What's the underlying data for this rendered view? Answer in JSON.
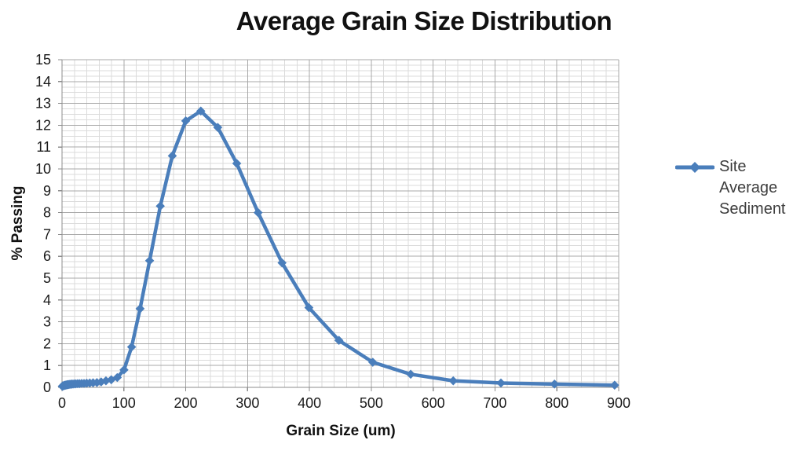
{
  "title": "Average Grain Size Distribution",
  "x_axis": {
    "title": "Grain Size (um)"
  },
  "y_axis": {
    "title": "% Passing"
  },
  "legend": {
    "series_label": "Site Average Sediment",
    "position": "right"
  },
  "colors": {
    "series": "#4A7EBB",
    "grid_major": "#A8A8A8",
    "grid_minor": "#DBDBDB",
    "axis": "#8C8C8C",
    "tick_text": "#1A1A1A",
    "title_text": "#111111",
    "legend_text": "#3D3D3D",
    "background": "#FFFFFF"
  },
  "chart_data": {
    "type": "line",
    "title": "Average Grain Size Distribution",
    "xlabel": "Grain Size (um)",
    "ylabel": "% Passing",
    "xlim": [
      0,
      900
    ],
    "ylim": [
      0,
      15
    ],
    "x_ticks": [
      0,
      100,
      200,
      300,
      400,
      500,
      600,
      700,
      800,
      900
    ],
    "y_ticks": [
      0,
      1,
      2,
      3,
      4,
      5,
      6,
      7,
      8,
      9,
      10,
      11,
      12,
      13,
      14,
      15
    ],
    "x_minor_step": 20,
    "y_minor_step": 0.25,
    "grid": "major-and-minor",
    "legend_position": "right",
    "marker": "diamond",
    "series": [
      {
        "name": "Site Average Sediment",
        "color": "#4A7EBB",
        "points": [
          [
            0.4,
            0.05
          ],
          [
            1,
            0.06
          ],
          [
            2,
            0.07
          ],
          [
            3,
            0.08
          ],
          [
            4,
            0.09
          ],
          [
            5,
            0.1
          ],
          [
            6,
            0.1
          ],
          [
            7,
            0.11
          ],
          [
            8,
            0.12
          ],
          [
            9,
            0.12
          ],
          [
            10,
            0.13
          ],
          [
            11.2,
            0.13
          ],
          [
            12.6,
            0.14
          ],
          [
            14.2,
            0.14
          ],
          [
            15.9,
            0.15
          ],
          [
            17.8,
            0.15
          ],
          [
            20,
            0.16
          ],
          [
            22.4,
            0.16
          ],
          [
            25.2,
            0.17
          ],
          [
            28.3,
            0.17
          ],
          [
            31.7,
            0.18
          ],
          [
            35.6,
            0.18
          ],
          [
            39.9,
            0.19
          ],
          [
            44.8,
            0.2
          ],
          [
            50.2,
            0.21
          ],
          [
            56.4,
            0.22
          ],
          [
            63.2,
            0.25
          ],
          [
            71,
            0.3
          ],
          [
            79.6,
            0.35
          ],
          [
            89.3,
            0.45
          ],
          [
            100.2,
            0.8
          ],
          [
            112.5,
            1.85
          ],
          [
            126.2,
            3.6
          ],
          [
            141.6,
            5.8
          ],
          [
            158.9,
            8.3
          ],
          [
            178.3,
            10.6
          ],
          [
            200,
            12.2
          ],
          [
            224.4,
            12.65
          ],
          [
            251.8,
            11.9
          ],
          [
            282.5,
            10.25
          ],
          [
            317,
            8.0
          ],
          [
            355.7,
            5.7
          ],
          [
            399.1,
            3.65
          ],
          [
            447.7,
            2.15
          ],
          [
            502.4,
            1.15
          ],
          [
            563.7,
            0.6
          ],
          [
            632.5,
            0.3
          ],
          [
            709.6,
            0.2
          ],
          [
            796.2,
            0.15
          ],
          [
            893.4,
            0.1
          ]
        ]
      }
    ]
  }
}
